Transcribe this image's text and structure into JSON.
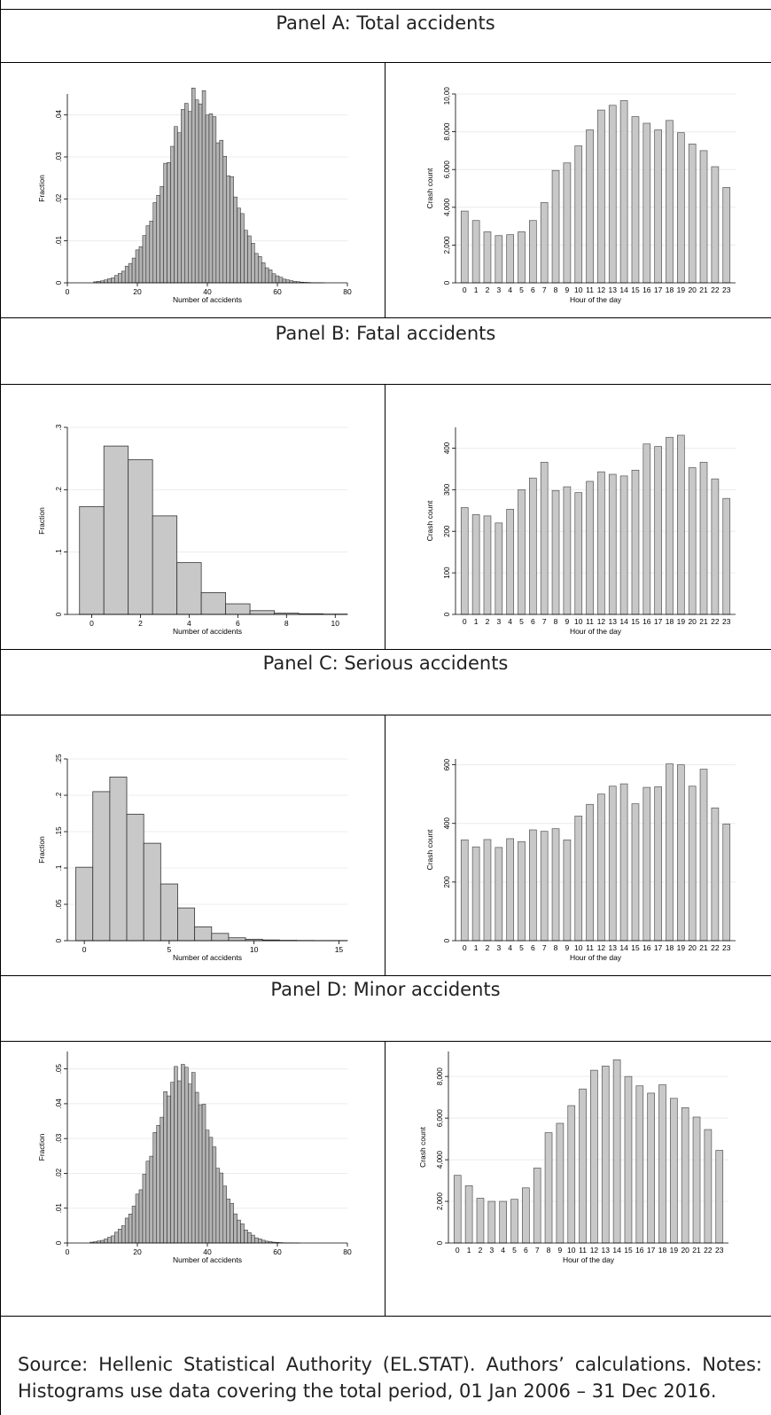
{
  "panels": [
    {
      "title": "Panel A: Total accidents",
      "histogram": {
        "type": "bar",
        "xlabel": "Number of accidents",
        "ylabel": "Fraction",
        "xticks": [
          "0",
          "20",
          "40",
          "60",
          "80"
        ],
        "yticks": [
          "0",
          ".01",
          ".02",
          ".03",
          ".04"
        ],
        "xlim": [
          0,
          80
        ],
        "ylim": [
          0,
          0.045
        ]
      },
      "hourly": {
        "type": "bar",
        "xlabel": "Hour of the day",
        "ylabel": "Crash count",
        "yticks": [
          "0",
          "2,000",
          "4,000",
          "6,000",
          "8,000",
          "10,000"
        ],
        "ylim": [
          0,
          10000
        ],
        "categories": [
          "0",
          "1",
          "2",
          "3",
          "4",
          "5",
          "6",
          "7",
          "8",
          "9",
          "10",
          "11",
          "12",
          "13",
          "14",
          "15",
          "16",
          "17",
          "18",
          "19",
          "20",
          "21",
          "22",
          "23"
        ],
        "values": [
          3800,
          3300,
          2700,
          2500,
          2550,
          2700,
          3300,
          4250,
          5950,
          6350,
          7250,
          8100,
          9150,
          9400,
          9650,
          8800,
          8450,
          8100,
          8600,
          7950,
          7350,
          7000,
          6150,
          5050
        ]
      }
    },
    {
      "title": "Panel B: Fatal accidents",
      "histogram": {
        "type": "bar",
        "xlabel": "Number of accidents",
        "ylabel": "Fraction",
        "xticks": [
          "0",
          "2",
          "4",
          "6",
          "8",
          "10"
        ],
        "yticks": [
          "0",
          ".1",
          ".2",
          ".3"
        ],
        "xlim": [
          -1,
          10.5
        ],
        "ylim": [
          0,
          0.3
        ],
        "categories": [
          "0",
          "1",
          "2",
          "3",
          "4",
          "5",
          "6",
          "7",
          "8",
          "9",
          "10"
        ],
        "values": [
          0.173,
          0.27,
          0.248,
          0.158,
          0.083,
          0.035,
          0.017,
          0.006,
          0.002,
          0.001,
          0.0005
        ]
      },
      "hourly": {
        "type": "bar",
        "xlabel": "Hour of the day",
        "ylabel": "Crash count",
        "yticks": [
          "0",
          "100",
          "200",
          "300",
          "400"
        ],
        "ylim": [
          0,
          450
        ],
        "categories": [
          "0",
          "1",
          "2",
          "3",
          "4",
          "5",
          "6",
          "7",
          "8",
          "9",
          "10",
          "11",
          "12",
          "13",
          "14",
          "15",
          "16",
          "17",
          "18",
          "19",
          "20",
          "21",
          "22",
          "23"
        ],
        "values": [
          257,
          240,
          237,
          220,
          253,
          300,
          328,
          366,
          298,
          307,
          293,
          320,
          343,
          337,
          333,
          347,
          410,
          404,
          426,
          431,
          353,
          366,
          326,
          279
        ]
      }
    },
    {
      "title": "Panel C: Serious accidents",
      "histogram": {
        "type": "bar",
        "xlabel": "Number of accidents",
        "ylabel": "Fraction",
        "xticks": [
          "0",
          "5",
          "10",
          "15"
        ],
        "yticks": [
          "0",
          ".05",
          ".1",
          ".15",
          ".2",
          ".25"
        ],
        "xlim": [
          -1,
          15.5
        ],
        "ylim": [
          0,
          0.25
        ],
        "categories": [
          "0",
          "1",
          "2",
          "3",
          "4",
          "5",
          "6",
          "7",
          "8",
          "9",
          "10",
          "11",
          "12",
          "13",
          "14",
          "15"
        ],
        "values": [
          0.101,
          0.205,
          0.225,
          0.174,
          0.134,
          0.078,
          0.045,
          0.019,
          0.01,
          0.004,
          0.002,
          0.001,
          0.0005,
          0.0003,
          0.0002,
          0.0002
        ]
      },
      "hourly": {
        "type": "bar",
        "xlabel": "Hour of the day",
        "ylabel": "Crash count",
        "yticks": [
          "0",
          "200",
          "400",
          "600"
        ],
        "ylim": [
          0,
          620
        ],
        "categories": [
          "0",
          "1",
          "2",
          "3",
          "4",
          "5",
          "6",
          "7",
          "8",
          "9",
          "10",
          "11",
          "12",
          "13",
          "14",
          "15",
          "16",
          "17",
          "18",
          "19",
          "20",
          "21",
          "22",
          "23"
        ],
        "values": [
          344,
          320,
          345,
          318,
          348,
          338,
          378,
          373,
          382,
          344,
          425,
          465,
          500,
          527,
          535,
          467,
          523,
          525,
          603,
          600,
          527,
          585,
          453,
          398
        ]
      }
    },
    {
      "title": "Panel D: Minor accidents",
      "histogram": {
        "type": "bar",
        "xlabel": "Number of accidents",
        "ylabel": "Fraction",
        "xticks": [
          "0",
          "20",
          "40",
          "60",
          "80"
        ],
        "yticks": [
          "0",
          ".01",
          ".02",
          ".03",
          ".04",
          ".05"
        ],
        "xlim": [
          0,
          80
        ],
        "ylim": [
          0,
          0.055
        ]
      },
      "hourly": {
        "type": "bar",
        "xlabel": "Hour of the day",
        "ylabel": "Crash count",
        "yticks": [
          "0",
          "2,000",
          "4,000",
          "6,000",
          "8,000"
        ],
        "ylim": [
          0,
          9200
        ],
        "categories": [
          "0",
          "1",
          "2",
          "3",
          "4",
          "5",
          "6",
          "7",
          "8",
          "9",
          "10",
          "11",
          "12",
          "13",
          "14",
          "15",
          "16",
          "17",
          "18",
          "19",
          "20",
          "21",
          "22",
          "23"
        ],
        "values": [
          3250,
          2750,
          2150,
          2000,
          2000,
          2100,
          2650,
          3600,
          5300,
          5750,
          6600,
          7400,
          8300,
          8500,
          8800,
          8000,
          7550,
          7200,
          7600,
          6950,
          6500,
          6050,
          5450,
          4450
        ]
      }
    }
  ],
  "source": "Source: Hellenic Statistical Authority (EL.STAT). Authors’ calculations. Notes: Histograms use data covering the total period, 01 Jan 2006 – 31 Dec 2016."
}
